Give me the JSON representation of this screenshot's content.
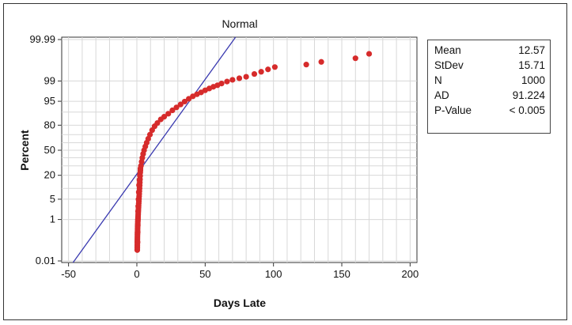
{
  "colors": {
    "points": "#d62b2b",
    "fit_line": "#3a3ab0",
    "grid": "#d8d8d8"
  },
  "chart_data": {
    "type": "scatter",
    "title": "Normal",
    "xlabel": "Days Late",
    "ylabel": "Percent",
    "xlim": [
      -55,
      205
    ],
    "x_ticks": [
      -50,
      0,
      50,
      100,
      150,
      200
    ],
    "x_tick_labels": [
      "-50",
      "0",
      "50",
      "100",
      "150",
      "200"
    ],
    "y_scale": "normal probability",
    "y_ticks": [
      0.01,
      1,
      5,
      20,
      50,
      80,
      95,
      99,
      99.99
    ],
    "y_tick_labels": [
      "0.01",
      "1",
      "5",
      "20",
      "50",
      "80",
      "95",
      "99",
      "99.99"
    ],
    "grid": true,
    "fit_line": {
      "mean": 12.57,
      "stdev": 15.71
    },
    "series": [
      {
        "values": [
          [
            0.3,
            0.04
          ],
          [
            0.5,
            0.1
          ],
          [
            0.6,
            0.3
          ],
          [
            0.7,
            0.6
          ],
          [
            0.8,
            1
          ],
          [
            0.9,
            2
          ],
          [
            1.0,
            3
          ],
          [
            1.2,
            5
          ],
          [
            1.4,
            8
          ],
          [
            1.6,
            12
          ],
          [
            1.9,
            16
          ],
          [
            2.2,
            20
          ],
          [
            2.6,
            25
          ],
          [
            3.0,
            30
          ],
          [
            3.5,
            35
          ],
          [
            4.0,
            40
          ],
          [
            4.6,
            45
          ],
          [
            5.3,
            50
          ],
          [
            6.2,
            55
          ],
          [
            7.2,
            60
          ],
          [
            8.3,
            65
          ],
          [
            9.6,
            70
          ],
          [
            11.2,
            75
          ],
          [
            13.0,
            79
          ],
          [
            15.0,
            82
          ],
          [
            17.5,
            85
          ],
          [
            20.0,
            87
          ],
          [
            23.0,
            89
          ],
          [
            26.0,
            91
          ],
          [
            29.0,
            92.5
          ],
          [
            32.0,
            93.8
          ],
          [
            35.0,
            94.9
          ],
          [
            38.0,
            95.8
          ],
          [
            41.0,
            96.5
          ],
          [
            44.0,
            97
          ],
          [
            47.0,
            97.4
          ],
          [
            50.0,
            97.8
          ],
          [
            53.0,
            98.1
          ],
          [
            56.0,
            98.35
          ],
          [
            59.0,
            98.55
          ],
          [
            62.0,
            98.75
          ],
          [
            66.0,
            98.95
          ],
          [
            70.0,
            99.1
          ],
          [
            75.0,
            99.22
          ],
          [
            80.0,
            99.32
          ],
          [
            86.0,
            99.48
          ],
          [
            91.0,
            99.58
          ],
          [
            96.0,
            99.67
          ],
          [
            101.0,
            99.74
          ],
          [
            124.0,
            99.8
          ],
          [
            135.0,
            99.85
          ],
          [
            160.0,
            99.9
          ],
          [
            170.0,
            99.94
          ]
        ]
      }
    ]
  },
  "stats": [
    {
      "label": "Mean",
      "value": "12.57"
    },
    {
      "label": "StDev",
      "value": "15.71"
    },
    {
      "label": "N",
      "value": "1000"
    },
    {
      "label": "AD",
      "value": "91.224"
    },
    {
      "label": "P-Value",
      "value": "< 0.005"
    }
  ]
}
